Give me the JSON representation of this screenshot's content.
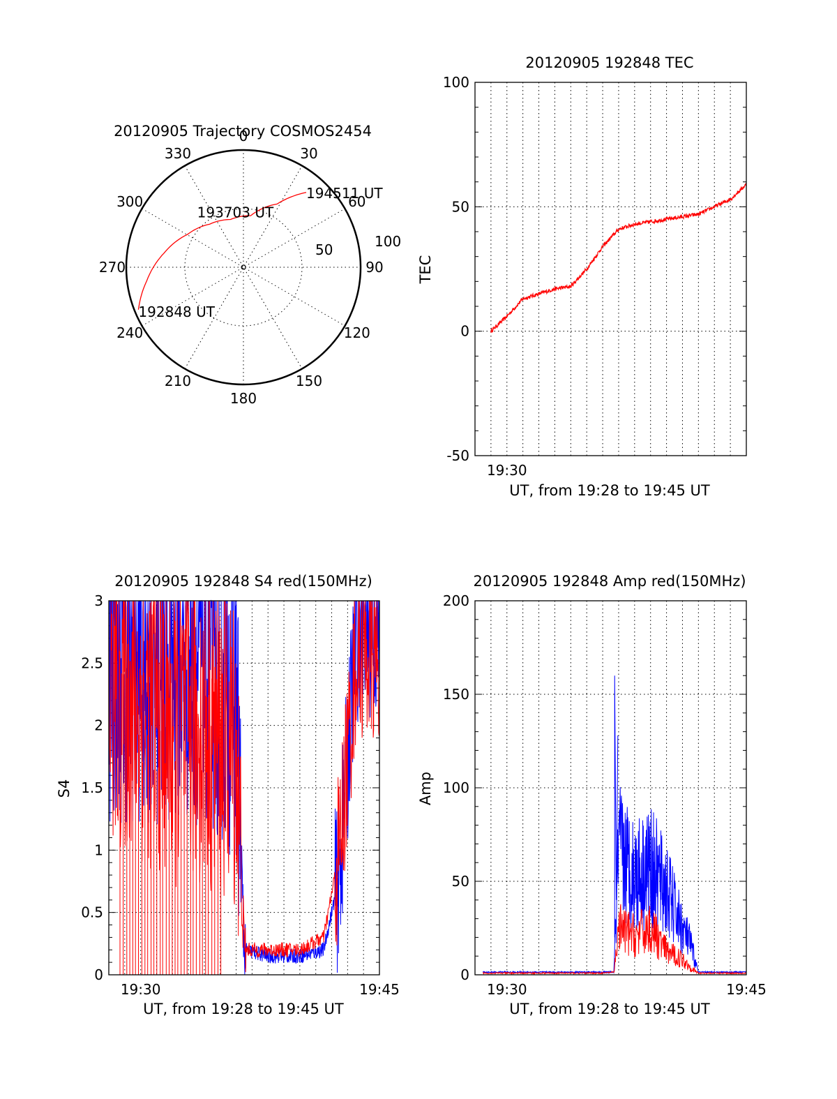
{
  "colors": {
    "red": "#ff0000",
    "blue": "#0000ff"
  },
  "chart_data": [
    {
      "type": "polar",
      "title": "20120905 Trajectory COSMOS2454",
      "angle_labels": [
        "0",
        "30",
        "60",
        "90",
        "120",
        "150",
        "180",
        "210",
        "240",
        "270",
        "300",
        "330"
      ],
      "radius_labels": [
        "50",
        "100"
      ],
      "trajectory": [
        [
          248,
          87
        ],
        [
          262,
          75
        ],
        [
          280,
          62
        ],
        [
          300,
          50
        ],
        [
          322,
          42
        ],
        [
          345,
          38
        ],
        [
          8,
          40
        ],
        [
          28,
          55
        ],
        [
          40,
          75
        ]
      ],
      "annotations": [
        {
          "text": "194511 UT",
          "az": 40,
          "zen": 75
        },
        {
          "text": "193703 UT",
          "az": 345,
          "zen": 38
        },
        {
          "text": "192848 UT",
          "az": 248,
          "zen": 87
        }
      ]
    },
    {
      "type": "line",
      "title": "20120905 192848 TEC",
      "xlabel": "UT, from 19:28 to 19:45 UT",
      "ylabel": "TEC",
      "xlim": [
        "19:28",
        "19:45"
      ],
      "ylim": [
        -50,
        100
      ],
      "yticks": [
        "100",
        "50",
        "0",
        "-50"
      ],
      "xticks": [
        "19:30"
      ],
      "series": [
        {
          "color": "#ff0000",
          "x": [
            "19:29",
            "19:30",
            "19:31",
            "19:32",
            "19:33",
            "19:34",
            "19:35",
            "19:36",
            "19:37",
            "19:38",
            "19:39",
            "19:40",
            "19:41",
            "19:42",
            "19:43",
            "19:44",
            "19:45"
          ],
          "values": [
            0,
            6,
            13,
            15,
            17,
            18,
            25,
            34,
            41,
            43,
            44,
            45,
            46,
            47,
            50,
            53,
            59
          ]
        }
      ]
    },
    {
      "type": "line",
      "title": "20120905 192848 S4 red(150MHz)",
      "xlabel": "UT, from 19:28 to 19:45 UT",
      "ylabel": "S4",
      "xlim": [
        "19:28",
        "19:45"
      ],
      "ylim": [
        0,
        3
      ],
      "yticks": [
        "3",
        "2.5",
        "2",
        "1.5",
        "1",
        "0.5",
        "0"
      ],
      "xticks": [
        "19:30",
        "19:45"
      ],
      "series": [
        {
          "color": "#ff0000",
          "x": [
            "19:28",
            "19:30",
            "19:32",
            "19:34",
            "19:36",
            "19:36.5",
            "19:38",
            "19:40",
            "19:41.5",
            "19:42.5",
            "19:43.5",
            "19:44",
            "19:45"
          ],
          "values": [
            2.3,
            2.2,
            2.0,
            2.0,
            1.8,
            0.2,
            0.2,
            0.2,
            0.3,
            1.0,
            2.5,
            2.6,
            2.5
          ]
        },
        {
          "color": "#0000ff",
          "x": [
            "19:28",
            "19:30",
            "19:32",
            "19:34",
            "19:36",
            "19:36.5",
            "19:38",
            "19:40",
            "19:41.5",
            "19:42.5",
            "19:43.5",
            "19:44",
            "19:45"
          ],
          "values": [
            2.5,
            2.5,
            2.5,
            2.5,
            2.2,
            0.2,
            0.15,
            0.15,
            0.2,
            0.8,
            2.7,
            2.8,
            2.7
          ]
        }
      ]
    },
    {
      "type": "line",
      "title": "20120905 192848 Amp red(150MHz)",
      "xlabel": "UT, from 19:28 to 19:45 UT",
      "ylabel": "Amp",
      "xlim": [
        "19:28",
        "19:45"
      ],
      "ylim": [
        0,
        200
      ],
      "yticks": [
        "200",
        "150",
        "100",
        "50",
        "0"
      ],
      "xticks": [
        "19:30",
        "19:45"
      ],
      "series": [
        {
          "color": "#ff0000",
          "x": [
            "19:28.5",
            "19:36",
            "19:36.7",
            "19:37",
            "19:38",
            "19:39",
            "19:40",
            "19:41",
            "19:41.5",
            "19:42",
            "19:45"
          ],
          "values": [
            0.5,
            0.5,
            1,
            30,
            25,
            30,
            15,
            10,
            5,
            0.5,
            0.5
          ]
        },
        {
          "color": "#0000ff",
          "x": [
            "19:28.5",
            "19:36",
            "19:36.7",
            "19:37",
            "19:38",
            "19:39",
            "19:40",
            "19:41",
            "19:41.5",
            "19:42",
            "19:45"
          ],
          "values": [
            1,
            1,
            1,
            80,
            65,
            70,
            55,
            30,
            20,
            1,
            1
          ]
        }
      ]
    }
  ]
}
